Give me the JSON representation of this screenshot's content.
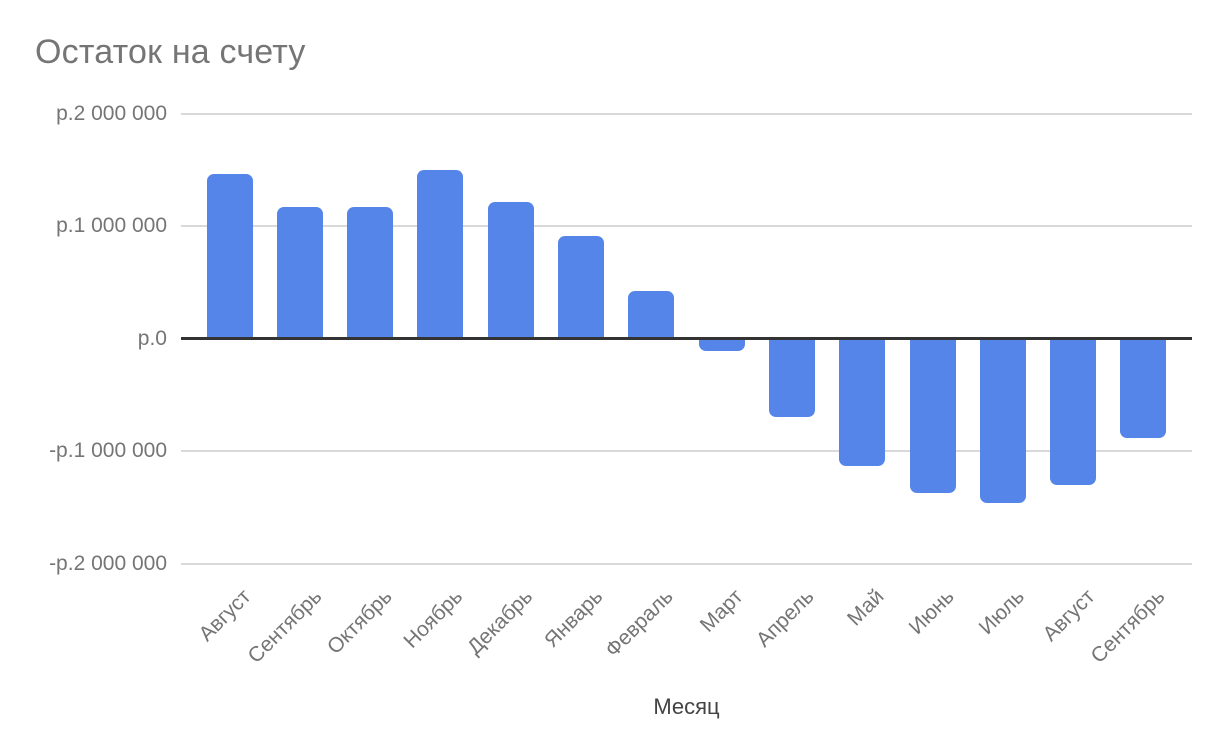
{
  "chart_data": {
    "type": "bar",
    "title": "Остаток на счету",
    "xlabel": "Месяц",
    "ylabel": "",
    "categories": [
      "Август",
      "Сентябрь",
      "Октябрь",
      "Ноябрь",
      "Декабрь",
      "Январь",
      "Февраль",
      "Март",
      "Апрель",
      "Май",
      "Июнь",
      "Июль",
      "Август",
      "Сентябрь"
    ],
    "values": [
      1460000,
      1170000,
      1170000,
      1500000,
      1210000,
      910000,
      420000,
      -110000,
      -700000,
      -1130000,
      -1370000,
      -1460000,
      -1300000,
      -880000
    ],
    "ylim": [
      -2000000,
      2000000
    ],
    "y_ticks": [
      {
        "value": 2000000,
        "label": "р.2 000 000"
      },
      {
        "value": 1000000,
        "label": "р.1 000 000"
      },
      {
        "value": 0,
        "label": "р.0"
      },
      {
        "value": -1000000,
        "label": "-р.1 000 000"
      },
      {
        "value": -2000000,
        "label": "-р.2 000 000"
      }
    ],
    "grid": true,
    "legend": "none",
    "bar_color": "#5585e8",
    "colors": {
      "title": "#757575",
      "tick_label": "#757575",
      "axis_title": "#434343",
      "gridline": "#d9d9d9",
      "zero_line": "#333333",
      "background": "#ffffff"
    }
  }
}
